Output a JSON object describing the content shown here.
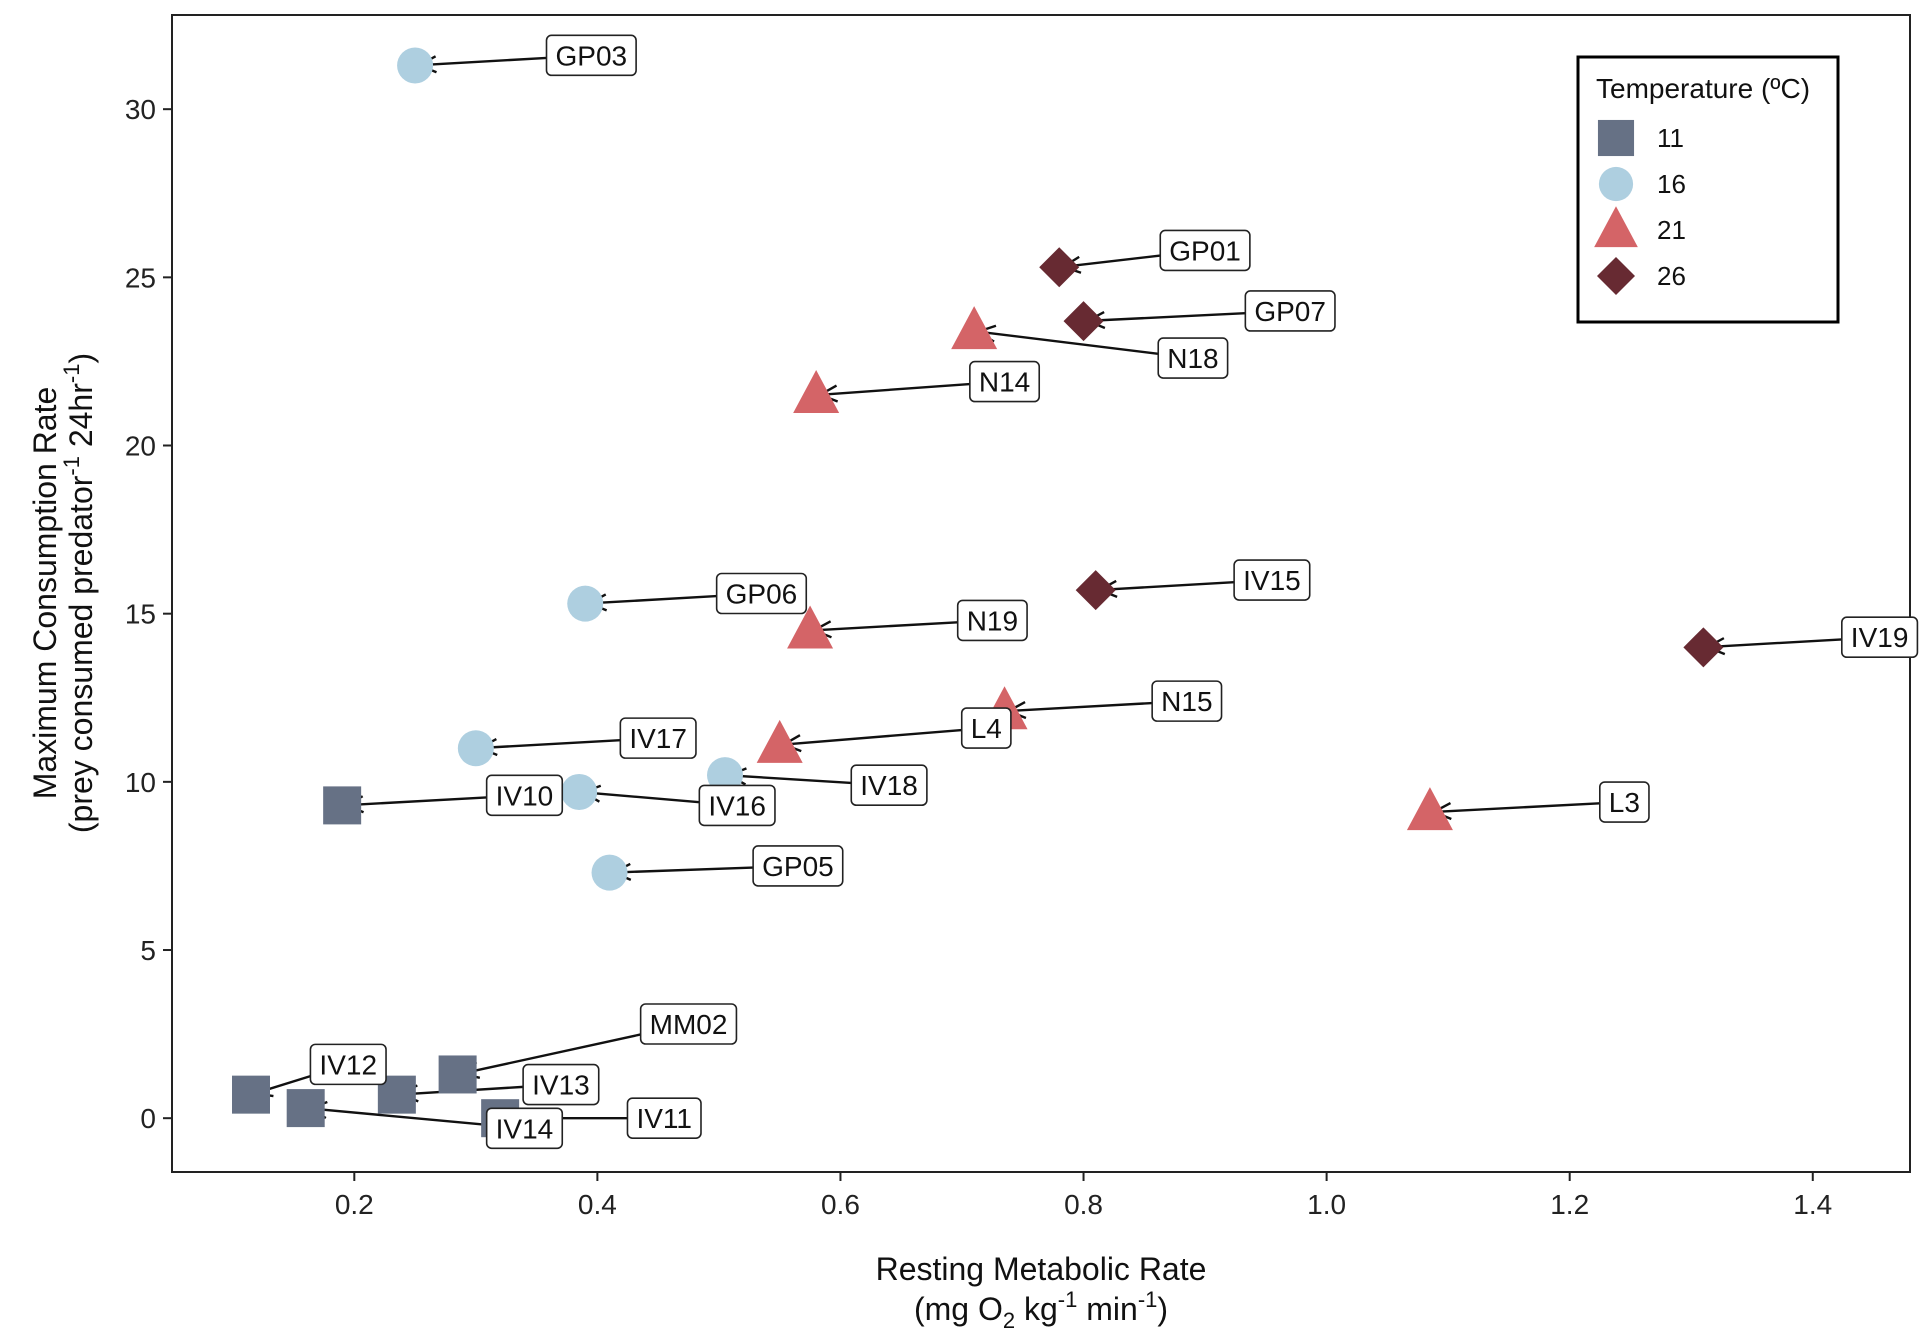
{
  "chart_data": {
    "type": "scatter",
    "xlabel": {
      "line1": "Resting Metabolic Rate",
      "line2_parts": [
        "(mg O",
        "2",
        " kg",
        "-1",
        " min",
        "-1",
        ")"
      ]
    },
    "ylabel": {
      "line1": "Maximum Consumption Rate",
      "line2_parts": [
        "(prey consumed predator",
        "-1",
        " 24hr",
        "-1",
        ")"
      ]
    },
    "xlim": [
      0.05,
      1.48
    ],
    "ylim": [
      -1.6,
      32.8
    ],
    "x_ticks": [
      0.2,
      0.4,
      0.6,
      0.8,
      1.0,
      1.2,
      1.4
    ],
    "x_tick_labels": [
      "0.2",
      "0.4",
      "0.6",
      "0.8",
      "1.0",
      "1.2",
      "1.4"
    ],
    "y_ticks": [
      0,
      5,
      10,
      15,
      20,
      25,
      30
    ],
    "y_tick_labels": [
      "0",
      "5",
      "10",
      "15",
      "20",
      "25",
      "30"
    ],
    "grid": false,
    "legend": {
      "title": "Temperature (ºC)",
      "placement": "top-right",
      "entries": [
        {
          "label": "11",
          "shape": "square",
          "color": "#667185"
        },
        {
          "label": "16",
          "shape": "circle",
          "color": "#aecfe0"
        },
        {
          "label": "21",
          "shape": "triangle",
          "color": "#d46467"
        },
        {
          "label": "26",
          "shape": "diamond",
          "color": "#672a32"
        }
      ]
    },
    "series": [
      {
        "name": "11",
        "shape": "square",
        "color": "#667185",
        "points": [
          {
            "label": "IV10",
            "x": 0.19,
            "y": 9.3,
            "lx": 0.34,
            "ly": 9.6
          },
          {
            "label": "IV12",
            "x": 0.115,
            "y": 0.7,
            "lx": 0.195,
            "ly": 1.6
          },
          {
            "label": "IV14",
            "x": 0.16,
            "y": 0.3,
            "lx": 0.34,
            "ly": -0.3
          },
          {
            "label": "IV13",
            "x": 0.235,
            "y": 0.7,
            "lx": 0.37,
            "ly": 1.0
          },
          {
            "label": "MM02",
            "x": 0.285,
            "y": 1.3,
            "lx": 0.475,
            "ly": 2.8
          },
          {
            "label": "IV11",
            "x": 0.32,
            "y": 0.0,
            "lx": 0.455,
            "ly": 0.0
          }
        ]
      },
      {
        "name": "16",
        "shape": "circle",
        "color": "#aecfe0",
        "points": [
          {
            "label": "GP03",
            "x": 0.25,
            "y": 31.3,
            "lx": 0.395,
            "ly": 31.6
          },
          {
            "label": "GP06",
            "x": 0.39,
            "y": 15.3,
            "lx": 0.535,
            "ly": 15.6
          },
          {
            "label": "IV17",
            "x": 0.3,
            "y": 11.0,
            "lx": 0.45,
            "ly": 11.3
          },
          {
            "label": "IV16",
            "x": 0.385,
            "y": 9.7,
            "lx": 0.515,
            "ly": 9.3
          },
          {
            "label": "IV18",
            "x": 0.505,
            "y": 10.2,
            "lx": 0.64,
            "ly": 9.9
          },
          {
            "label": "GP05",
            "x": 0.41,
            "y": 7.3,
            "lx": 0.565,
            "ly": 7.5
          }
        ]
      },
      {
        "name": "21",
        "shape": "triangle",
        "color": "#d46467",
        "points": [
          {
            "label": "N18",
            "x": 0.71,
            "y": 23.4,
            "lx": 0.89,
            "ly": 22.6
          },
          {
            "label": "N14",
            "x": 0.58,
            "y": 21.5,
            "lx": 0.735,
            "ly": 21.9
          },
          {
            "label": "N19",
            "x": 0.575,
            "y": 14.5,
            "lx": 0.725,
            "ly": 14.8
          },
          {
            "label": "N15",
            "x": 0.735,
            "y": 12.1,
            "lx": 0.885,
            "ly": 12.4
          },
          {
            "label": "L4",
            "x": 0.55,
            "y": 11.1,
            "lx": 0.72,
            "ly": 11.6
          },
          {
            "label": "L3",
            "x": 1.085,
            "y": 9.1,
            "lx": 1.245,
            "ly": 9.4
          }
        ]
      },
      {
        "name": "26",
        "shape": "diamond",
        "color": "#672a32",
        "points": [
          {
            "label": "GP01",
            "x": 0.78,
            "y": 25.3,
            "lx": 0.9,
            "ly": 25.8
          },
          {
            "label": "GP07",
            "x": 0.8,
            "y": 23.7,
            "lx": 0.97,
            "ly": 24.0
          },
          {
            "label": "IV15",
            "x": 0.81,
            "y": 15.7,
            "lx": 0.955,
            "ly": 16.0
          },
          {
            "label": "IV19",
            "x": 1.31,
            "y": 14.0,
            "lx": 1.455,
            "ly": 14.3
          }
        ]
      }
    ]
  }
}
